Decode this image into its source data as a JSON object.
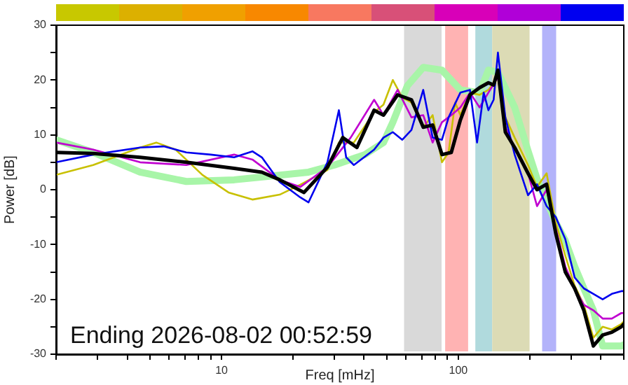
{
  "chart_data": {
    "type": "line",
    "xlabel": "Freq [mHz]",
    "ylabel": "Power [dB]",
    "log": "x",
    "grid": false,
    "legend": false,
    "marker": "none",
    "line_style": "solid",
    "xlim": [
      2,
      500
    ],
    "ylim": [
      -30,
      30
    ],
    "xticks": [
      {
        "value": 2,
        "label": null
      },
      {
        "value": 3,
        "label": null
      },
      {
        "value": 4,
        "label": null
      },
      {
        "value": 5,
        "label": null
      },
      {
        "value": 6,
        "label": null
      },
      {
        "value": 7,
        "label": null
      },
      {
        "value": 8,
        "label": null
      },
      {
        "value": 9,
        "label": null
      },
      10,
      {
        "value": 20,
        "label": null
      },
      {
        "value": 30,
        "label": null
      },
      {
        "value": 40,
        "label": null
      },
      {
        "value": 50,
        "label": null
      },
      {
        "value": 60,
        "label": null
      },
      {
        "value": 70,
        "label": null
      },
      {
        "value": 80,
        "label": null
      },
      {
        "value": 90,
        "label": null
      },
      100,
      {
        "value": 200,
        "label": null
      },
      {
        "value": 300,
        "label": null
      },
      {
        "value": 400,
        "label": null
      },
      {
        "value": 500,
        "label": null
      }
    ],
    "yticks": [
      -30,
      {
        "value": -25,
        "label": null
      },
      -20,
      {
        "value": -15,
        "label": null
      },
      -10,
      {
        "value": -5,
        "label": null
      },
      0,
      {
        "value": 5,
        "label": null
      },
      10,
      {
        "value": 15,
        "label": null
      },
      20,
      {
        "value": 25,
        "label": null
      },
      30
    ],
    "bands": [
      {
        "axis": "x",
        "from": 59,
        "to": 85,
        "color": "#d9d9d9"
      },
      {
        "axis": "x",
        "from": 88,
        "to": 110,
        "color": "#ffb3b3"
      },
      {
        "axis": "x",
        "from": 118,
        "to": 139,
        "color": "#b0dadd"
      },
      {
        "axis": "x",
        "from": 139,
        "to": 200,
        "color": "#dcdbb5"
      },
      {
        "axis": "x",
        "from": 226,
        "to": 259,
        "color": "#b3b3fa"
      }
    ],
    "annotations": [
      "Ending 2026-08-02 00:52:59"
    ],
    "series": [
      {
        "color": "#a8f5a8",
        "x": [
          2,
          2.87,
          4.53,
          7.1,
          11.3,
          16.2,
          23.3,
          30,
          40.3,
          48.3,
          52.9,
          61,
          71.1,
          85.3,
          102,
          123,
          134,
          147,
          173,
          197,
          215,
          236,
          258,
          283,
          310,
          339,
          372,
          407,
          488,
          500
        ],
        "values": [
          9.1,
          6.8,
          3.2,
          1.5,
          1.8,
          2.5,
          3.2,
          4.5,
          6.4,
          8.6,
          12.3,
          19,
          22.3,
          21.8,
          18.2,
          17.7,
          21.8,
          21.4,
          15,
          7.1,
          2,
          -2,
          -6,
          -9.3,
          -14,
          -18,
          -22,
          -28.5,
          -28.5,
          -28.3
        ]
      },
      {
        "color": "#c8c000",
        "x": [
          2,
          2.87,
          4.53,
          5.3,
          6.4,
          8.3,
          10.7,
          13.5,
          17.6,
          21.5,
          28,
          31.3,
          36.2,
          44.1,
          48.3,
          52.9,
          58,
          63.4,
          71.1,
          77.9,
          85.3,
          91,
          97,
          102,
          112,
          123,
          134,
          141,
          147,
          158,
          173,
          197,
          215,
          236,
          258,
          283,
          310,
          339,
          372,
          407,
          445,
          488,
          500
        ],
        "values": [
          2.7,
          4.5,
          7.7,
          8.6,
          7.3,
          2.7,
          -0.5,
          -1.8,
          -0.9,
          0.9,
          3.6,
          8.6,
          8.6,
          14.1,
          15.5,
          20,
          16.8,
          15.9,
          11.4,
          13.6,
          5,
          6.8,
          15.9,
          13.6,
          17.7,
          17.3,
          18.2,
          19.5,
          21.4,
          13.2,
          9.5,
          4.5,
          0.5,
          3,
          -6,
          -12,
          -17.5,
          -21,
          -27,
          -25,
          -25.5,
          -24.5,
          -24
        ]
      },
      {
        "color": "#c000d0",
        "x": [
          2,
          2.87,
          4.53,
          7.1,
          11.3,
          13.5,
          17.6,
          21.5,
          28,
          35.1,
          44.1,
          48.3,
          55.4,
          63.4,
          71.1,
          77.9,
          85.3,
          93.4,
          102,
          112,
          123,
          134,
          147,
          158,
          173,
          197,
          215,
          236,
          258,
          283,
          310,
          339,
          372,
          407,
          445,
          488,
          500
        ],
        "values": [
          8.6,
          7.3,
          5,
          4.5,
          6.4,
          5.5,
          1.8,
          0.5,
          4.1,
          9.5,
          16.4,
          13.6,
          18.2,
          13.2,
          13.6,
          8.6,
          12.3,
          13.6,
          15,
          17.7,
          15,
          17.7,
          20.5,
          11.4,
          7.7,
          3,
          -3,
          0,
          -7,
          -14,
          -18,
          -21,
          -22,
          -23.5,
          -23.5,
          -22.5,
          -22.5
        ]
      },
      {
        "color": "#0000ee",
        "x": [
          2,
          2.87,
          4.53,
          5.7,
          7.1,
          9,
          11.3,
          13.5,
          14.8,
          17.6,
          21.5,
          23.3,
          28,
          31.3,
          33.6,
          36.2,
          44.1,
          48.3,
          52.9,
          58,
          63.4,
          71.1,
          77.9,
          85.3,
          91,
          102,
          112,
          120,
          128,
          134,
          141,
          147,
          158,
          173,
          197,
          215,
          236,
          258,
          283,
          310,
          339,
          372,
          407,
          445,
          488,
          500
        ],
        "values": [
          5,
          6.4,
          7.7,
          7.9,
          6.8,
          6.4,
          5.9,
          7,
          5.9,
          1.4,
          -1.4,
          -2.3,
          5,
          14.5,
          5.9,
          4.5,
          7.3,
          9.5,
          10.5,
          9.1,
          10.9,
          18.2,
          9.5,
          9.1,
          13.2,
          17.7,
          18.2,
          8.6,
          17.7,
          14.5,
          16.4,
          25,
          13.2,
          6.4,
          -1,
          1,
          -3,
          -5,
          -9,
          -16,
          -18,
          -19,
          -20,
          -19,
          -18.5,
          -18.5
        ]
      },
      {
        "color": "#000000",
        "x": [
          2,
          2.87,
          4.53,
          7.1,
          11.3,
          14.8,
          17.6,
          22.3,
          28,
          32.5,
          37.3,
          44.1,
          48.3,
          55.4,
          63.4,
          71.1,
          77.9,
          85.3,
          93.4,
          102,
          112,
          123,
          134,
          141,
          147,
          158,
          173,
          197,
          215,
          236,
          258,
          283,
          310,
          339,
          372,
          407,
          445,
          488,
          500
        ],
        "values": [
          6.8,
          6.6,
          5.9,
          5,
          3.9,
          3.2,
          1.8,
          -0.5,
          4.1,
          9.5,
          7.7,
          14.5,
          13.6,
          17.3,
          16.4,
          11.4,
          11.8,
          6.4,
          6.8,
          12.7,
          17.3,
          18.6,
          19.5,
          19.1,
          21.8,
          10.5,
          7.7,
          3,
          0,
          1,
          -8,
          -15,
          -18,
          -22,
          -28.5,
          -26.5,
          -26,
          -25,
          -24.5
        ]
      }
    ]
  }
}
